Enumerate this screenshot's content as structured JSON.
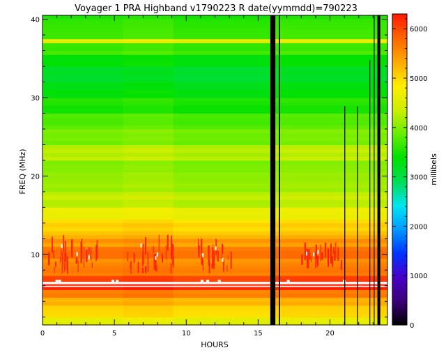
{
  "chart_data": {
    "type": "heatmap",
    "title": "Voyager 1 PRA Highband v1790223 R    date(yymmdd)=790223",
    "xlabel": "HOURS",
    "ylabel": "FREQ (MHz)",
    "colorbar_label": "millibels",
    "xlim": [
      0,
      24
    ],
    "ylim": [
      1,
      40.5
    ],
    "x_ticks": [
      0,
      5,
      10,
      15,
      20
    ],
    "y_ticks": [
      10,
      20,
      30,
      40
    ],
    "colorbar_range": [
      0,
      6300
    ],
    "colorbar_ticks": [
      0,
      1000,
      2000,
      3000,
      4000,
      5000,
      6000
    ],
    "colormap": [
      "#000000",
      "#3a0077",
      "#4a00c8",
      "#0033ff",
      "#0099ff",
      "#00e6f0",
      "#00dd55",
      "#00e000",
      "#66ee00",
      "#ccee00",
      "#ffee00",
      "#ffaa00",
      "#ff6600",
      "#ff1a00"
    ],
    "grid": false,
    "freq_profile_millibels": [
      {
        "f0": 1.0,
        "f1": 2.0,
        "v": 4600
      },
      {
        "f0": 2.0,
        "f1": 3.5,
        "v": 5050
      },
      {
        "f0": 3.5,
        "f1": 4.5,
        "v": 5300
      },
      {
        "f0": 4.5,
        "f1": 5.5,
        "v": 5600
      },
      {
        "f0": 5.5,
        "f1": 6.6,
        "v": 6250
      },
      {
        "f0": 6.6,
        "f1": 7.3,
        "v": 6000
      },
      {
        "f0": 7.3,
        "f1": 8.5,
        "v": 5700
      },
      {
        "f0": 8.5,
        "f1": 9.5,
        "v": 5550
      },
      {
        "f0": 9.5,
        "f1": 11.0,
        "v": 5750
      },
      {
        "f0": 11.0,
        "f1": 12.0,
        "v": 5450
      },
      {
        "f0": 12.0,
        "f1": 13.0,
        "v": 5200
      },
      {
        "f0": 13.0,
        "f1": 14.5,
        "v": 5000
      },
      {
        "f0": 14.5,
        "f1": 16.0,
        "v": 4650
      },
      {
        "f0": 16.0,
        "f1": 18.0,
        "v": 4300
      },
      {
        "f0": 18.0,
        "f1": 20.0,
        "v": 4150
      },
      {
        "f0": 20.0,
        "f1": 22.0,
        "v": 4050
      },
      {
        "f0": 22.0,
        "f1": 24.0,
        "v": 4250
      },
      {
        "f0": 24.0,
        "f1": 26.0,
        "v": 3950
      },
      {
        "f0": 26.0,
        "f1": 28.0,
        "v": 3800
      },
      {
        "f0": 28.0,
        "f1": 30.0,
        "v": 3550
      },
      {
        "f0": 30.0,
        "f1": 32.0,
        "v": 3300
      },
      {
        "f0": 32.0,
        "f1": 34.0,
        "v": 3150
      },
      {
        "f0": 34.0,
        "f1": 35.5,
        "v": 3400
      },
      {
        "f0": 35.5,
        "f1": 37.0,
        "v": 3700
      },
      {
        "f0": 37.0,
        "f1": 37.5,
        "v": 4600
      },
      {
        "f0": 37.5,
        "f1": 40.5,
        "v": 3600
      }
    ],
    "saturated_bands_mhz": [
      [
        5.85,
        6.0
      ],
      [
        6.2,
        6.5
      ]
    ],
    "data_gaps_hours": [
      {
        "x0": 15.85,
        "x1": 16.2
      },
      {
        "x0": 16.45,
        "x1": 16.53
      },
      {
        "x0": 21.0,
        "x1": 21.06
      },
      {
        "x0": 21.9,
        "x1": 21.96
      },
      {
        "x0": 22.75,
        "x1": 22.8
      },
      {
        "x0": 23.05,
        "x1": 23.1
      },
      {
        "x0": 23.3,
        "x1": 23.5
      }
    ],
    "emission_bursts": [
      {
        "x0": 0.2,
        "x1": 3.8,
        "f0": 7.5,
        "f1": 12.5
      },
      {
        "x0": 5.8,
        "x1": 9.2,
        "f0": 7.5,
        "f1": 12.5
      },
      {
        "x0": 10.8,
        "x1": 13.2,
        "f0": 7.5,
        "f1": 12.0
      },
      {
        "x0": 18.0,
        "x1": 20.8,
        "f0": 8.0,
        "f1": 11.5
      }
    ]
  }
}
